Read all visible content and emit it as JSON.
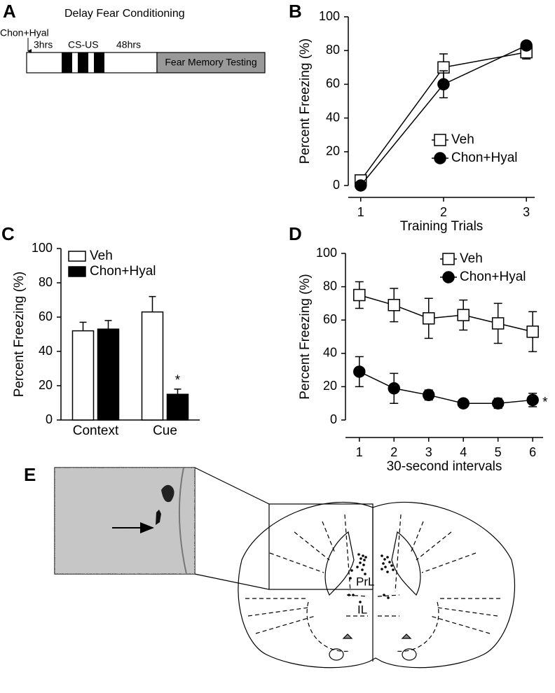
{
  "panel_a": {
    "label": "A",
    "title": "Delay Fear Conditioning",
    "drug": "Chon+Hyal",
    "delay1": "3hrs",
    "training": "CS-US",
    "delay2": "48hrs",
    "testing": "Fear Memory Testing"
  },
  "chart_data": [
    {
      "type": "line",
      "panel_label": "B",
      "xlabel": "Training Trials",
      "ylabel": "Percent Freezing (%)",
      "x": [
        1,
        2,
        3
      ],
      "xlim": [
        0.85,
        3.1
      ],
      "xticks": [
        1,
        2,
        3
      ],
      "ylim": [
        0,
        100
      ],
      "yticks": [
        0,
        20,
        40,
        60,
        80,
        100
      ],
      "series": [
        {
          "name": "Veh",
          "marker": "square",
          "color": "#ffffff",
          "values": [
            3,
            70,
            79
          ],
          "errors": [
            1,
            8,
            4
          ]
        },
        {
          "name": "Chon+Hyal",
          "marker": "circle",
          "color": "#000000",
          "values": [
            0,
            60,
            83
          ],
          "errors": [
            0,
            8,
            2
          ]
        }
      ]
    },
    {
      "type": "bar",
      "panel_label": "C",
      "ylabel": "Percent Freezing (%)",
      "categories": [
        "Context",
        "Cue"
      ],
      "ylim": [
        0,
        100
      ],
      "yticks": [
        0,
        20,
        40,
        60,
        80,
        100
      ],
      "series": [
        {
          "name": "Veh",
          "color": "#ffffff",
          "values": [
            52,
            63
          ],
          "errors": [
            5,
            9
          ]
        },
        {
          "name": "Chon+Hyal",
          "color": "#000000",
          "values": [
            53,
            15
          ],
          "errors": [
            5,
            3
          ]
        }
      ],
      "annotation": "*"
    },
    {
      "type": "line",
      "panel_label": "D",
      "xlabel": "30-second intervals",
      "ylabel": "Percent Freezing (%)",
      "x": [
        1,
        2,
        3,
        4,
        5,
        6
      ],
      "xlim": [
        0.6,
        6.3
      ],
      "xticks": [
        1,
        2,
        3,
        4,
        5,
        6
      ],
      "ylim": [
        0,
        100
      ],
      "yticks": [
        0,
        20,
        40,
        60,
        80,
        100
      ],
      "series": [
        {
          "name": "Veh",
          "marker": "square",
          "color": "#ffffff",
          "values": [
            75,
            69,
            61,
            63,
            58,
            53
          ],
          "errors": [
            8,
            10,
            12,
            9,
            12,
            12
          ]
        },
        {
          "name": "Chon+Hyal",
          "marker": "circle",
          "color": "#000000",
          "values": [
            29,
            19,
            15,
            10,
            10,
            12
          ],
          "errors": [
            9,
            9,
            3,
            1,
            3,
            4
          ]
        }
      ],
      "annotation": "*"
    }
  ],
  "panel_e": {
    "label": "E",
    "region1": "PrL",
    "region2": "IL"
  }
}
